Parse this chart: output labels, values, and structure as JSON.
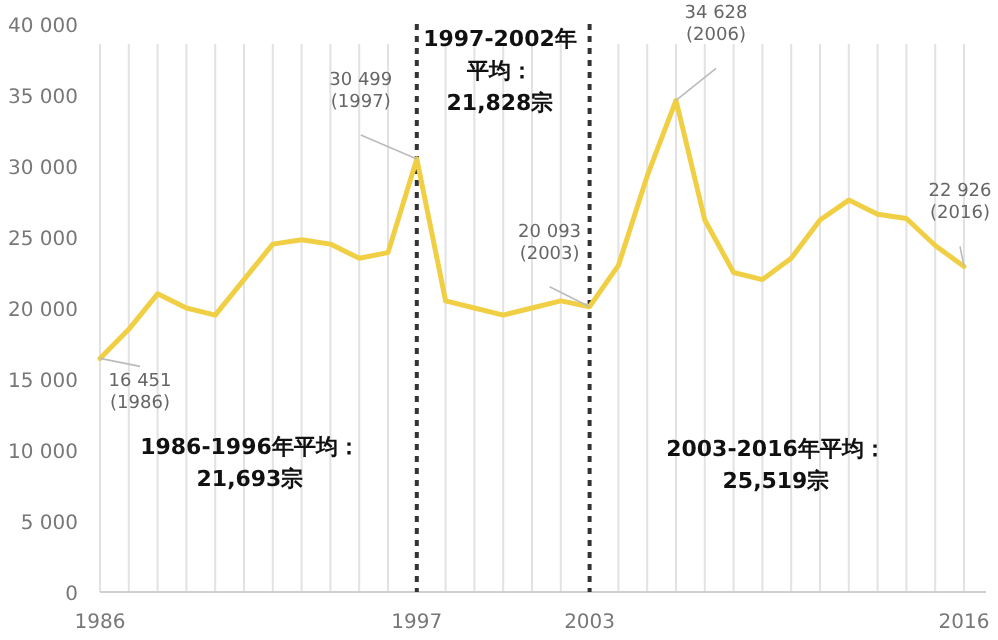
{
  "chart_data": {
    "type": "line",
    "x": [
      1986,
      1987,
      1988,
      1989,
      1990,
      1991,
      1992,
      1993,
      1994,
      1995,
      1996,
      1997,
      1998,
      1999,
      2000,
      2001,
      2002,
      2003,
      2004,
      2005,
      2006,
      2007,
      2008,
      2009,
      2010,
      2011,
      2012,
      2013,
      2014,
      2015,
      2016
    ],
    "series": [
      {
        "color": "#f0cf45",
        "values": [
          16451,
          18500,
          21000,
          20000,
          19500,
          22000,
          24500,
          24800,
          24500,
          23500,
          23900,
          30499,
          20500,
          20000,
          19500,
          20000,
          20500,
          20093,
          23000,
          29300,
          34628,
          26200,
          22500,
          22000,
          23500,
          26200,
          27600,
          26600,
          26300,
          24400,
          22926
        ]
      }
    ],
    "xlim": [
      1986,
      2016
    ],
    "xticks": [
      1986,
      1997,
      2003,
      2016
    ],
    "ylim": [
      0,
      40000
    ],
    "yticks": [
      {
        "value": 0,
        "label": "0"
      },
      {
        "value": 5000,
        "label": "5 000"
      },
      {
        "value": 10000,
        "label": "10 000"
      },
      {
        "value": 15000,
        "label": "15 000"
      },
      {
        "value": 20000,
        "label": "20 000"
      },
      {
        "value": 25000,
        "label": "25 000"
      },
      {
        "value": 30000,
        "label": "30 000"
      },
      {
        "value": 35000,
        "label": "35 000"
      },
      {
        "value": 40000,
        "label": "40 000"
      }
    ],
    "grid": "x",
    "marker": "none",
    "line_style": "solid",
    "ref_lines": [
      {
        "axis": "x",
        "value": 1997,
        "line_style": "dashed",
        "color": "#333333"
      },
      {
        "axis": "x",
        "value": 2003,
        "line_style": "dashed",
        "color": "#333333"
      }
    ],
    "annotations": [
      {
        "text": "30 499\n(1997)",
        "x": 1997,
        "y": 30499
      },
      {
        "text": "34 628\n(2006)",
        "x": 2006,
        "y": 34628
      },
      {
        "text": "22 926\n(2016)",
        "x": 2016,
        "y": 22926
      },
      {
        "text": "16 451\n(1986)",
        "x": 1986,
        "y": 16451
      },
      {
        "text": "20 093\n(2003)",
        "x": 2003,
        "y": 20093
      },
      "1986-1996年平均：\n21,693宗",
      "1997-2002年平均：\n21,828宗",
      "2003-2016年平均：\n25,519宗"
    ]
  }
}
